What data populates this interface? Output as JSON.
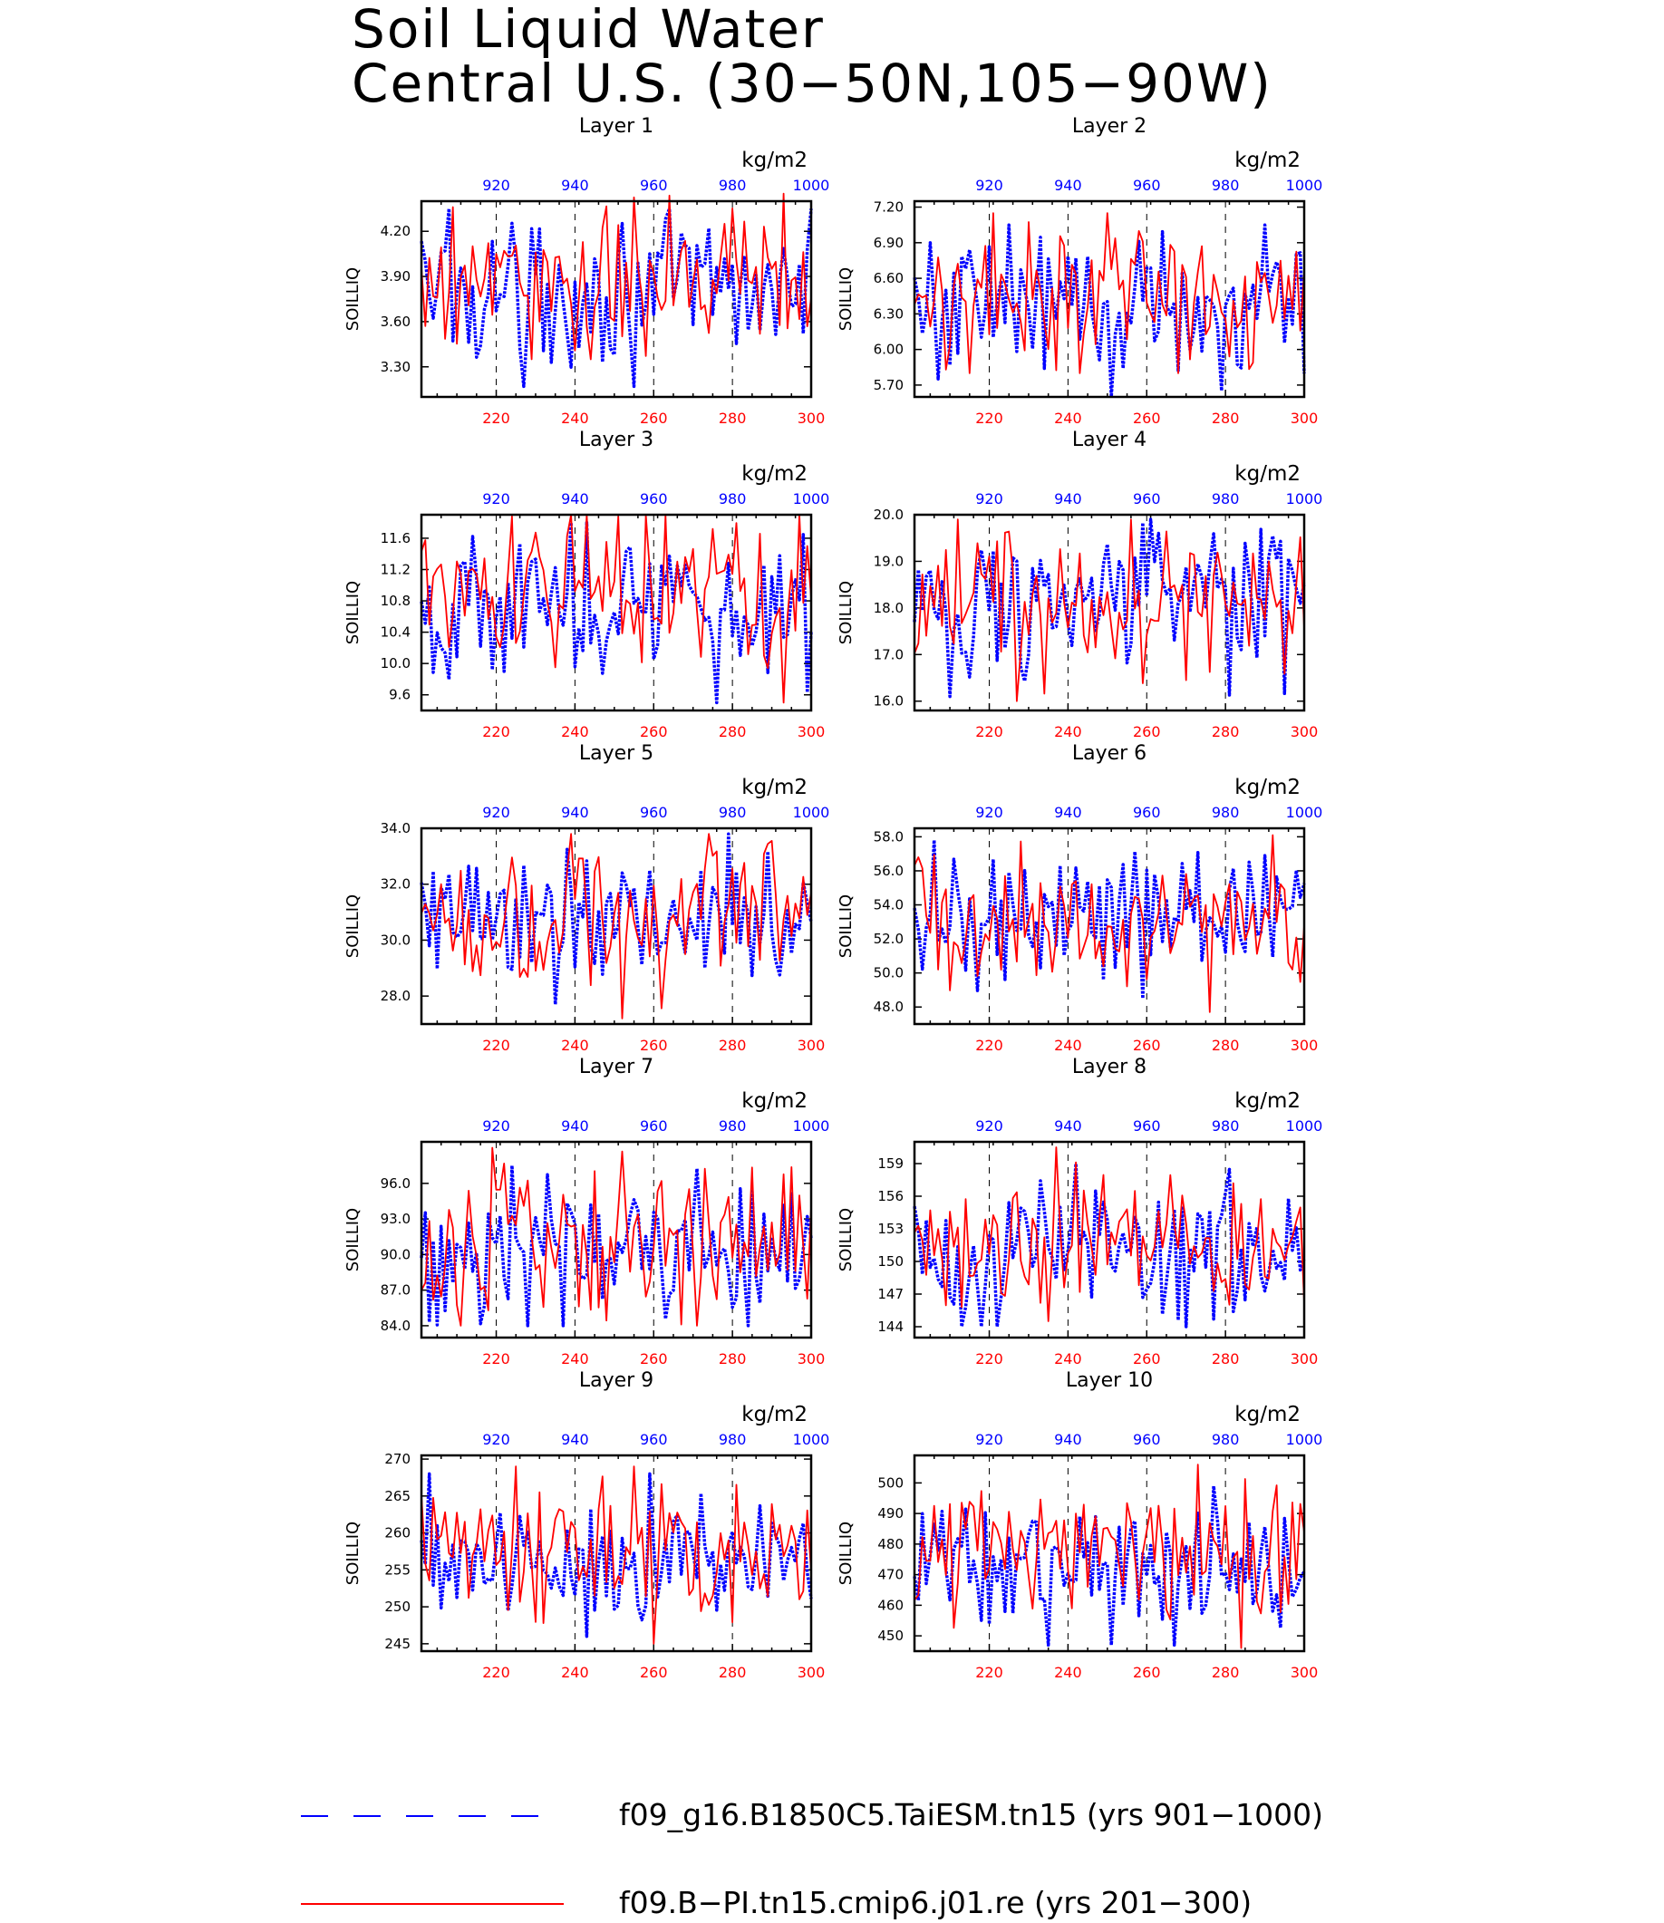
{
  "title_lines": [
    "Soil Liquid Water",
    "Central U.S. (30−50N,105−90W)"
  ],
  "legend": [
    {
      "label": "f09_g16.B1850C5.TaiESM.tn15 (yrs 901−1000)",
      "color": "#0000ff",
      "style": "dashed"
    },
    {
      "label": "f09.B−PI.tn15.cmip6.j01.re (yrs 201−300)",
      "color": "#ff0000",
      "style": "solid"
    }
  ],
  "chart_data": [
    {
      "type": "line",
      "title": "Layer 1",
      "ylabel": "SOILLIQ",
      "top_axis_label": "kg/m2",
      "x_bottom_ticks": [
        220,
        240,
        260,
        280,
        300
      ],
      "x_bottom_range": [
        201,
        300
      ],
      "x_top_ticks": [
        920,
        940,
        960,
        980,
        1000
      ],
      "x_top_range": [
        901,
        1000
      ],
      "ylim": [
        3.1,
        4.4
      ],
      "yticks": [
        3.3,
        3.6,
        3.9,
        4.2
      ],
      "ytick_labels": [
        "3.30",
        "3.60",
        "3.90",
        "4.20"
      ],
      "grid": "dashed vertical at 220, 240, 260, 280",
      "series": [
        {
          "years": "901−1000",
          "color": "#0000ff",
          "style": "dashed",
          "min": 3.17,
          "max": 4.35,
          "mean": 3.82
        },
        {
          "years": "201−300",
          "color": "#ff0000",
          "style": "solid",
          "min": 3.35,
          "max": 4.45,
          "mean": 3.88
        }
      ]
    },
    {
      "type": "line",
      "title": "Layer 2",
      "ylabel": "SOILLIQ",
      "top_axis_label": "kg/m2",
      "x_bottom_ticks": [
        220,
        240,
        260,
        280,
        300
      ],
      "x_bottom_range": [
        201,
        300
      ],
      "x_top_ticks": [
        920,
        940,
        960,
        980,
        1000
      ],
      "x_top_range": [
        901,
        1000
      ],
      "ylim": [
        5.6,
        7.25
      ],
      "yticks": [
        5.7,
        6.0,
        6.3,
        6.6,
        6.9,
        7.2
      ],
      "ytick_labels": [
        "5.70",
        "6.00",
        "6.30",
        "6.60",
        "6.90",
        "7.20"
      ],
      "grid": "dashed vertical at 220, 240, 260, 280",
      "series": [
        {
          "years": "901−1000",
          "color": "#0000ff",
          "style": "dashed",
          "min": 5.6,
          "max": 7.05,
          "mean": 6.4
        },
        {
          "years": "201−300",
          "color": "#ff0000",
          "style": "solid",
          "min": 5.8,
          "max": 7.15,
          "mean": 6.45
        }
      ]
    },
    {
      "type": "line",
      "title": "Layer 3",
      "ylabel": "SOILLIQ",
      "top_axis_label": "kg/m2",
      "x_bottom_ticks": [
        220,
        240,
        260,
        280,
        300
      ],
      "x_bottom_range": [
        201,
        300
      ],
      "x_top_ticks": [
        920,
        940,
        960,
        980,
        1000
      ],
      "x_top_range": [
        901,
        1000
      ],
      "ylim": [
        9.4,
        11.9
      ],
      "yticks": [
        9.6,
        10.0,
        10.4,
        10.8,
        11.2,
        11.6
      ],
      "ytick_labels": [
        "9.6",
        "10.0",
        "10.4",
        "10.8",
        "11.2",
        "11.6"
      ],
      "grid": "dashed vertical at 220, 240, 260, 280",
      "series": [
        {
          "years": "901−1000",
          "color": "#0000ff",
          "style": "dashed",
          "min": 9.5,
          "max": 11.8,
          "mean": 10.75
        },
        {
          "years": "201−300",
          "color": "#ff0000",
          "style": "solid",
          "min": 9.5,
          "max": 11.9,
          "mean": 10.85
        }
      ]
    },
    {
      "type": "line",
      "title": "Layer 4",
      "ylabel": "SOILLIQ",
      "top_axis_label": "kg/m2",
      "x_bottom_ticks": [
        220,
        240,
        260,
        280,
        300
      ],
      "x_bottom_range": [
        201,
        300
      ],
      "x_top_ticks": [
        920,
        940,
        960,
        980,
        1000
      ],
      "x_top_range": [
        901,
        1000
      ],
      "ylim": [
        15.8,
        20.0
      ],
      "yticks": [
        16.0,
        17.0,
        18.0,
        19.0,
        20.0
      ],
      "ytick_labels": [
        "16.0",
        "17.0",
        "18.0",
        "19.0",
        "20.0"
      ],
      "grid": "dashed vertical at 220, 240, 260, 280",
      "series": [
        {
          "years": "901−1000",
          "color": "#0000ff",
          "style": "dashed",
          "min": 16.1,
          "max": 19.9,
          "mean": 18.1
        },
        {
          "years": "201−300",
          "color": "#ff0000",
          "style": "solid",
          "min": 16.0,
          "max": 19.9,
          "mean": 18.2
        }
      ]
    },
    {
      "type": "line",
      "title": "Layer 5",
      "ylabel": "SOILLIQ",
      "top_axis_label": "kg/m2",
      "x_bottom_ticks": [
        220,
        240,
        260,
        280,
        300
      ],
      "x_bottom_range": [
        201,
        300
      ],
      "x_top_ticks": [
        920,
        940,
        960,
        980,
        1000
      ],
      "x_top_range": [
        901,
        1000
      ],
      "ylim": [
        27.0,
        34.0
      ],
      "yticks": [
        28.0,
        30.0,
        32.0,
        34.0
      ],
      "ytick_labels": [
        "28.0",
        "30.0",
        "32.0",
        "34.0"
      ],
      "grid": "dashed vertical at 220, 240, 260, 280",
      "series": [
        {
          "years": "901−1000",
          "color": "#0000ff",
          "style": "dashed",
          "min": 27.7,
          "max": 33.8,
          "mean": 30.9
        },
        {
          "years": "201−300",
          "color": "#ff0000",
          "style": "solid",
          "min": 27.2,
          "max": 33.8,
          "mean": 31.0
        }
      ]
    },
    {
      "type": "line",
      "title": "Layer 6",
      "ylabel": "SOILLIQ",
      "top_axis_label": "kg/m2",
      "x_bottom_ticks": [
        220,
        240,
        260,
        280,
        300
      ],
      "x_bottom_range": [
        201,
        300
      ],
      "x_top_ticks": [
        920,
        940,
        960,
        980,
        1000
      ],
      "x_top_range": [
        901,
        1000
      ],
      "ylim": [
        47.0,
        58.5
      ],
      "yticks": [
        48.0,
        50.0,
        52.0,
        54.0,
        56.0,
        58.0
      ],
      "ytick_labels": [
        "48.0",
        "50.0",
        "52.0",
        "54.0",
        "56.0",
        "58.0"
      ],
      "grid": "dashed vertical at 220, 240, 260, 280",
      "series": [
        {
          "years": "901−1000",
          "color": "#0000ff",
          "style": "dashed",
          "min": 48.5,
          "max": 57.8,
          "mean": 53.2
        },
        {
          "years": "201−300",
          "color": "#ff0000",
          "style": "solid",
          "min": 47.7,
          "max": 58.1,
          "mean": 53.3
        }
      ]
    },
    {
      "type": "line",
      "title": "Layer 7",
      "ylabel": "SOILLIQ",
      "top_axis_label": "kg/m2",
      "x_bottom_ticks": [
        220,
        240,
        260,
        280,
        300
      ],
      "x_bottom_range": [
        201,
        300
      ],
      "x_top_ticks": [
        920,
        940,
        960,
        980,
        1000
      ],
      "x_top_range": [
        901,
        1000
      ],
      "ylim": [
        83.0,
        99.5
      ],
      "yticks": [
        84.0,
        87.0,
        90.0,
        93.0,
        96.0
      ],
      "ytick_labels": [
        "84.0",
        "87.0",
        "90.0",
        "93.0",
        "96.0"
      ],
      "grid": "dashed vertical at 220, 240, 260, 280",
      "series": [
        {
          "years": "901−1000",
          "color": "#0000ff",
          "style": "dashed",
          "min": 84.0,
          "max": 97.5,
          "mean": 90.5
        },
        {
          "years": "201−300",
          "color": "#ff0000",
          "style": "solid",
          "min": 84.0,
          "max": 99.0,
          "mean": 90.8
        }
      ]
    },
    {
      "type": "line",
      "title": "Layer 8",
      "ylabel": "SOILLIQ",
      "top_axis_label": "kg/m2",
      "x_bottom_ticks": [
        220,
        240,
        260,
        280,
        300
      ],
      "x_bottom_range": [
        201,
        300
      ],
      "x_top_ticks": [
        920,
        940,
        960,
        980,
        1000
      ],
      "x_top_range": [
        901,
        1000
      ],
      "ylim": [
        143.0,
        161.0
      ],
      "yticks": [
        144,
        147,
        150,
        153,
        156,
        159
      ],
      "ytick_labels": [
        "144",
        "147",
        "150",
        "153",
        "156",
        "159"
      ],
      "grid": "dashed vertical at 220, 240, 260, 280",
      "series": [
        {
          "years": "901−1000",
          "color": "#0000ff",
          "style": "dashed",
          "min": 144.0,
          "max": 159.0,
          "mean": 151.5
        },
        {
          "years": "201−300",
          "color": "#ff0000",
          "style": "solid",
          "min": 144.5,
          "max": 160.5,
          "mean": 152.0
        }
      ]
    },
    {
      "type": "line",
      "title": "Layer 9",
      "ylabel": "SOILLIQ",
      "top_axis_label": "kg/m2",
      "x_bottom_ticks": [
        220,
        240,
        260,
        280,
        300
      ],
      "x_bottom_range": [
        201,
        300
      ],
      "x_top_ticks": [
        920,
        940,
        960,
        980,
        1000
      ],
      "x_top_range": [
        901,
        1000
      ],
      "ylim": [
        244.0,
        270.5
      ],
      "yticks": [
        245,
        250,
        255,
        260,
        265,
        270
      ],
      "ytick_labels": [
        "245",
        "250",
        "255",
        "260",
        "265",
        "270"
      ],
      "grid": "dashed vertical at 220, 240, 260, 280",
      "series": [
        {
          "years": "901−1000",
          "color": "#0000ff",
          "style": "dashed",
          "min": 246.0,
          "max": 268.0,
          "mean": 256.5
        },
        {
          "years": "201−300",
          "color": "#ff0000",
          "style": "solid",
          "min": 245.0,
          "max": 269.0,
          "mean": 257.0
        }
      ]
    },
    {
      "type": "line",
      "title": "Layer 10",
      "ylabel": "SOILLIQ",
      "top_axis_label": "kg/m2",
      "x_bottom_ticks": [
        220,
        240,
        260,
        280,
        300
      ],
      "x_bottom_range": [
        201,
        300
      ],
      "x_top_ticks": [
        920,
        940,
        960,
        980,
        1000
      ],
      "x_top_range": [
        901,
        1000
      ],
      "ylim": [
        445.0,
        509.0
      ],
      "yticks": [
        450,
        460,
        470,
        480,
        490,
        500
      ],
      "ytick_labels": [
        "450",
        "460",
        "470",
        "480",
        "490",
        "500"
      ],
      "grid": "dashed vertical at 220, 240, 260, 280",
      "series": [
        {
          "years": "901−1000",
          "color": "#0000ff",
          "style": "dashed",
          "min": 447.0,
          "max": 499.0,
          "mean": 470.0
        },
        {
          "years": "201−300",
          "color": "#ff0000",
          "style": "solid",
          "min": 446.0,
          "max": 506.0,
          "mean": 474.0
        }
      ]
    }
  ]
}
